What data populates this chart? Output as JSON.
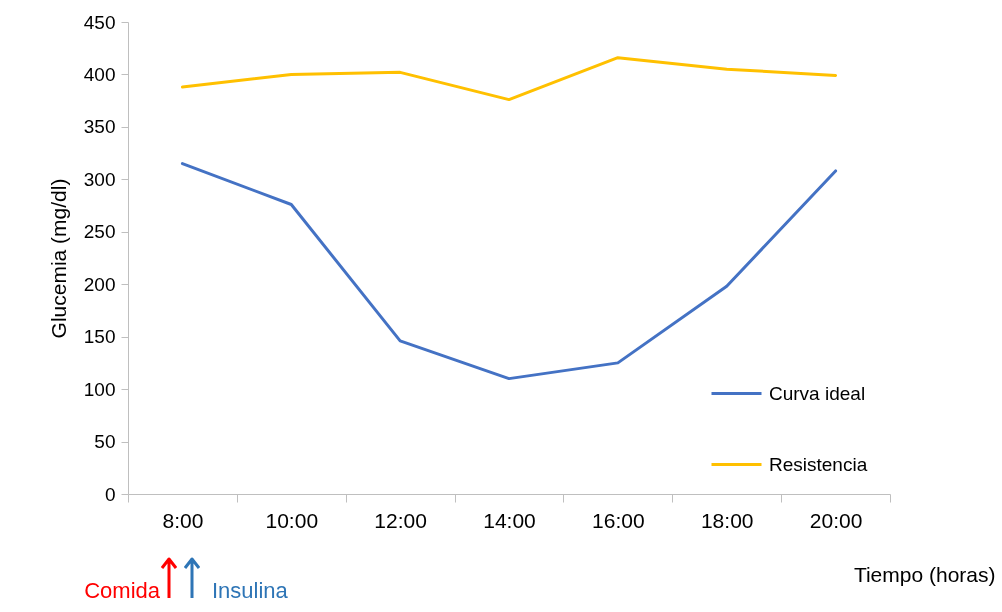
{
  "chart_data": {
    "type": "line",
    "xlabel": "Tiempo (horas)",
    "ylabel": "Glucemia (mg/dl)",
    "categories": [
      "8:00",
      "10:00",
      "12:00",
      "14:00",
      "16:00",
      "18:00",
      "20:00"
    ],
    "series": [
      {
        "name": "Curva ideal",
        "color": "#4472c4",
        "values": [
          315,
          276,
          146,
          110,
          125,
          198,
          308
        ]
      },
      {
        "name": "Resistencia",
        "color": "#ffc000",
        "values": [
          388,
          400,
          402,
          376,
          416,
          405,
          399
        ]
      }
    ],
    "ylim": [
      0,
      450
    ],
    "yticks": [
      0,
      50,
      100,
      150,
      200,
      250,
      300,
      350,
      400,
      450
    ],
    "grid": false,
    "legend": "bottom right",
    "annotations": [
      "Comida",
      "Insulina"
    ]
  }
}
